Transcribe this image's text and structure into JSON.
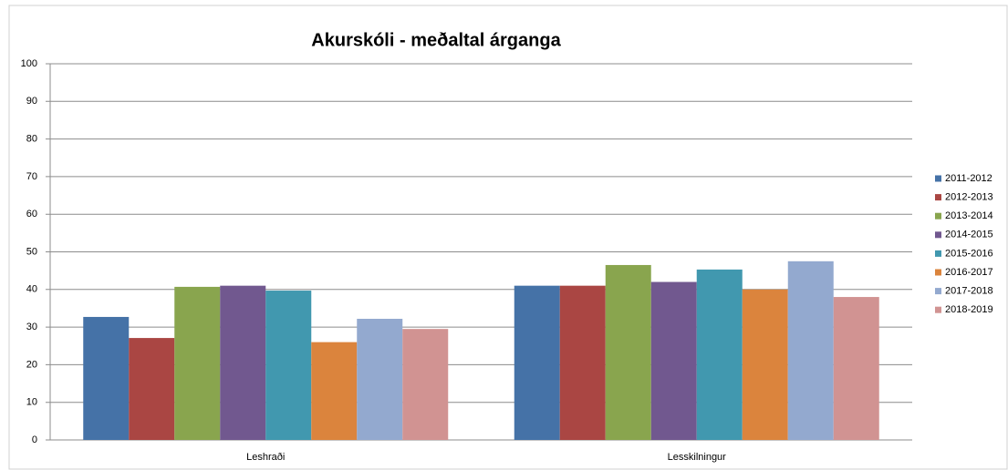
{
  "chart_data": {
    "type": "bar",
    "title": "Akurskóli - meðaltal árganga",
    "categories": [
      "Leshraði",
      "Lesskilningur"
    ],
    "series": [
      {
        "name": "2011-2012",
        "color": "#4572a7",
        "values": [
          32.7,
          41
        ]
      },
      {
        "name": "2012-2013",
        "color": "#aa4643",
        "values": [
          27.1,
          41
        ]
      },
      {
        "name": "2013-2014",
        "color": "#89a54e",
        "values": [
          40.7,
          46.5
        ]
      },
      {
        "name": "2014-2015",
        "color": "#71588f",
        "values": [
          41,
          42
        ]
      },
      {
        "name": "2015-2016",
        "color": "#4198af",
        "values": [
          39.7,
          45.3
        ]
      },
      {
        "name": "2016-2017",
        "color": "#db843d",
        "values": [
          26,
          40
        ]
      },
      {
        "name": "2017-2018",
        "color": "#93a9cf",
        "values": [
          32.2,
          47.5
        ]
      },
      {
        "name": "2018-2019",
        "color": "#d19392",
        "values": [
          29.5,
          38
        ]
      }
    ],
    "ylim": [
      0,
      100
    ],
    "yticks": [
      0,
      10,
      20,
      30,
      40,
      50,
      60,
      70,
      80,
      90,
      100
    ],
    "grid": true,
    "legend": "right"
  }
}
